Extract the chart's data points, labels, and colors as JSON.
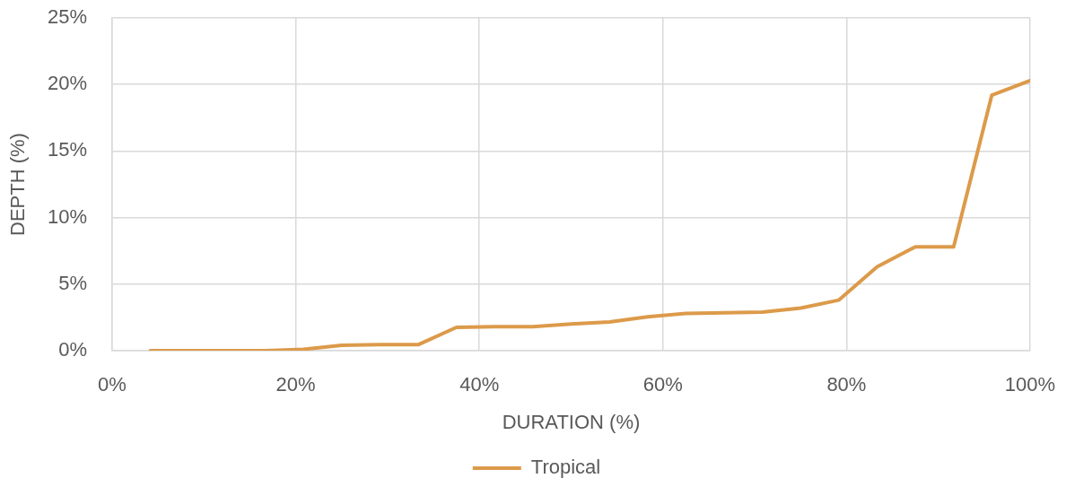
{
  "chart_data": {
    "type": "line",
    "xlabel": "DURATION (%)",
    "ylabel": "DEPTH (%)",
    "x": [
      4.17,
      8.33,
      12.5,
      16.67,
      20.83,
      25,
      29.17,
      33.33,
      37.5,
      41.67,
      45.83,
      50,
      54.17,
      58.33,
      62.5,
      66.67,
      70.83,
      75,
      79.17,
      83.33,
      87.5,
      91.67,
      95.83,
      100
    ],
    "series": [
      {
        "name": "Tropical",
        "color": "#dc9a4a",
        "values": [
          0,
          0,
          0,
          0,
          0.1,
          0.4,
          0.45,
          0.45,
          1.75,
          1.8,
          1.8,
          2.0,
          2.15,
          2.55,
          2.8,
          2.85,
          2.9,
          3.2,
          3.8,
          6.3,
          7.8,
          7.8,
          19.2,
          20.3
        ]
      }
    ],
    "xlim": [
      0,
      100
    ],
    "xticks": [
      {
        "value": 0,
        "label": "0%"
      },
      {
        "value": 20,
        "label": "20%"
      },
      {
        "value": 40,
        "label": "40%"
      },
      {
        "value": 60,
        "label": "60%"
      },
      {
        "value": 80,
        "label": "80%"
      },
      {
        "value": 100,
        "label": "100%"
      }
    ],
    "ylim": [
      0,
      25
    ],
    "yticks": [
      {
        "value": 0,
        "label": "0%"
      },
      {
        "value": 5,
        "label": "5%"
      },
      {
        "value": 10,
        "label": "10%"
      },
      {
        "value": 15,
        "label": "15%"
      },
      {
        "value": 20,
        "label": "20%"
      },
      {
        "value": 25,
        "label": "25%"
      }
    ],
    "grid": true,
    "legend": "bottom"
  }
}
